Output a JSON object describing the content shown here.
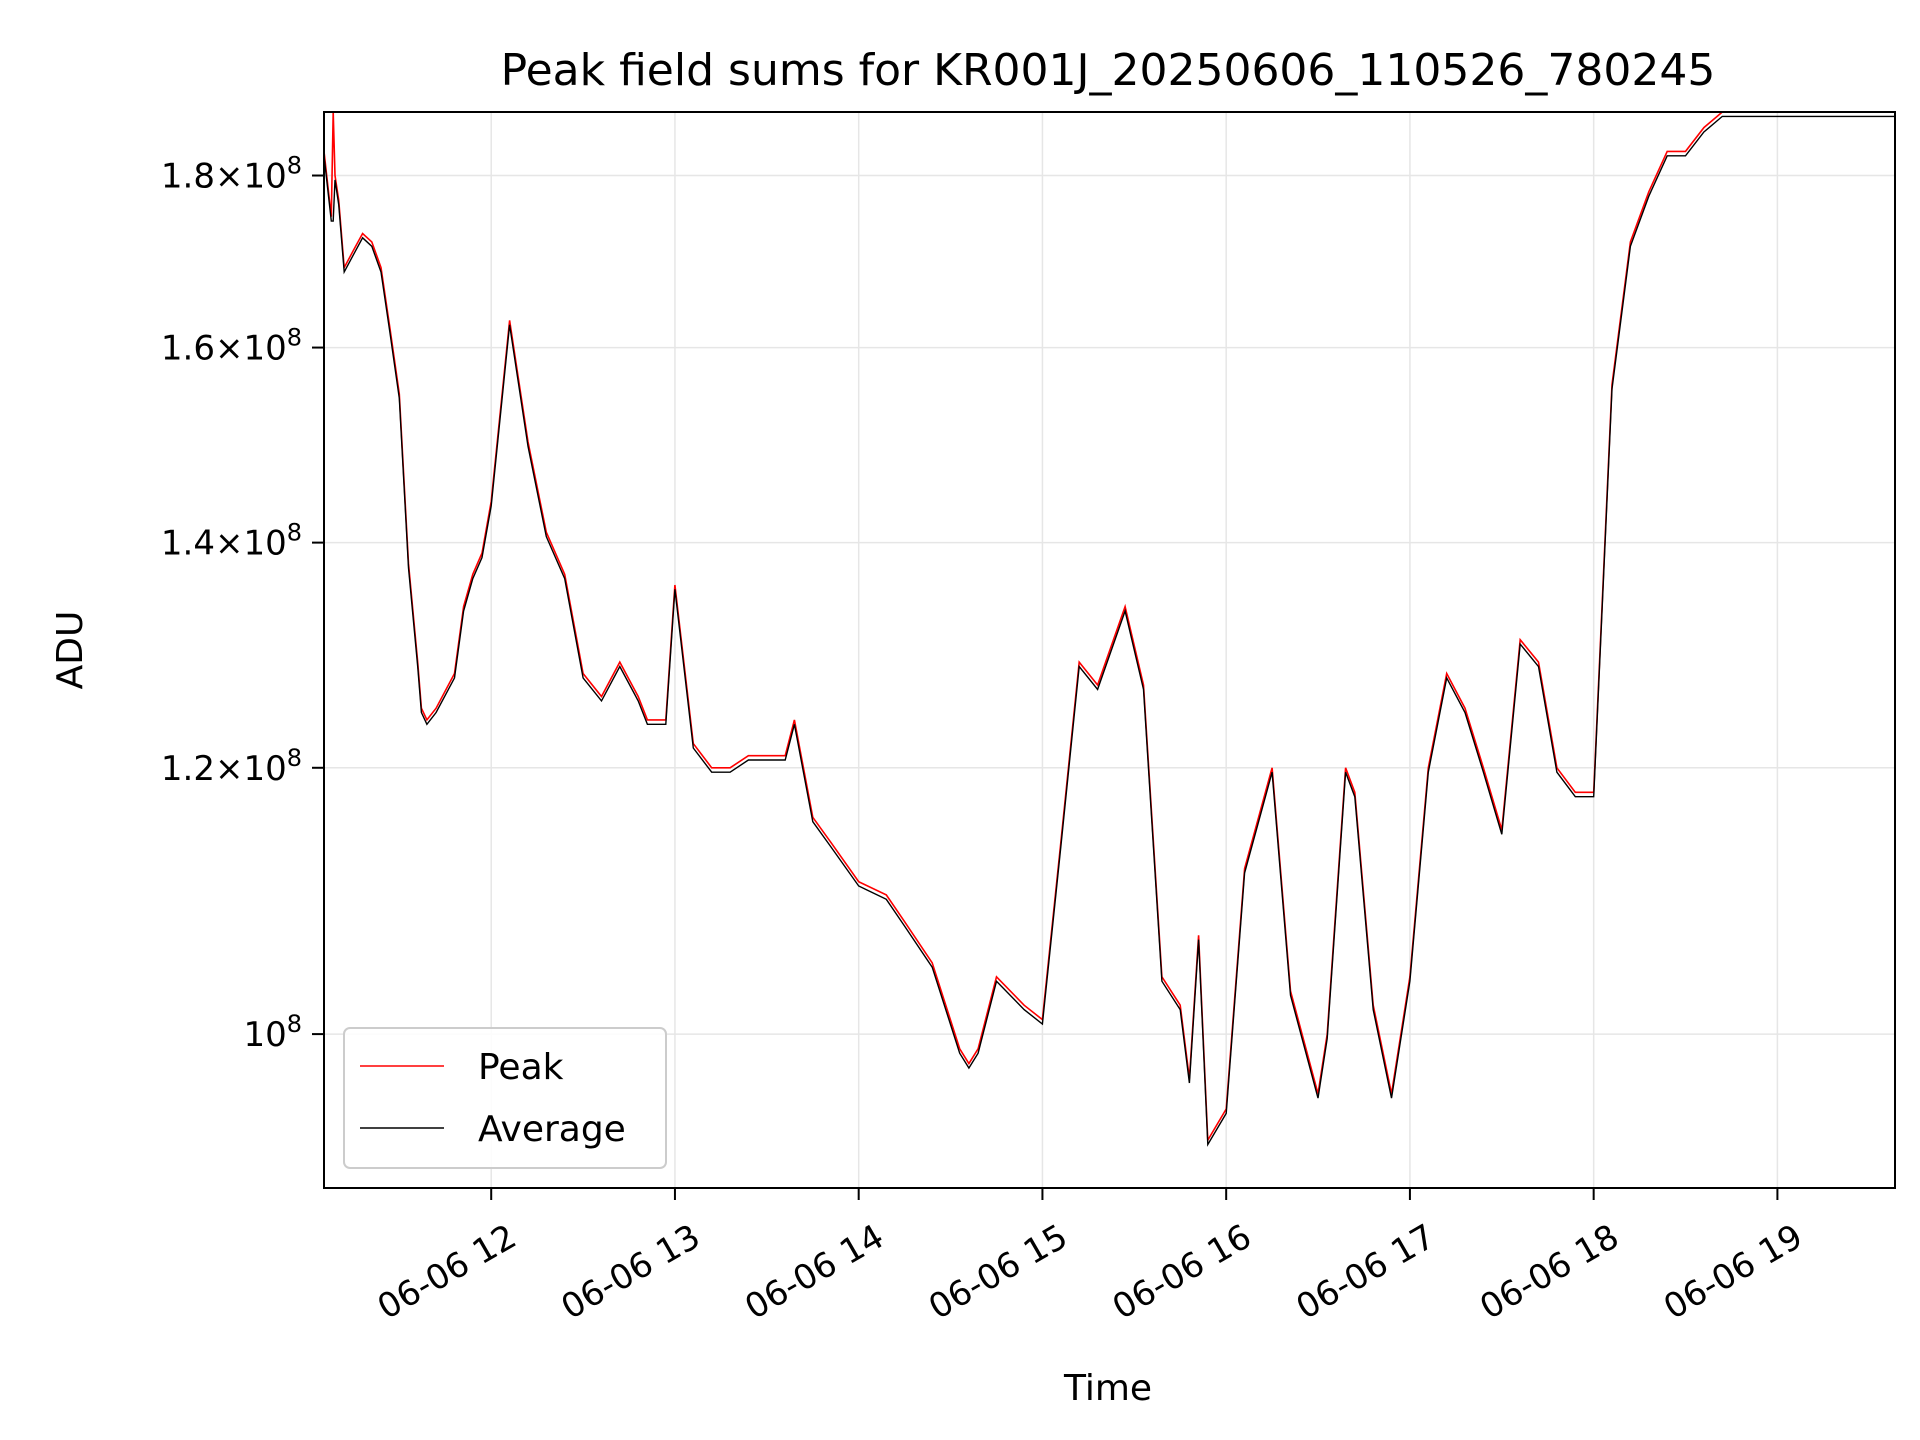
{
  "chart_data": {
    "type": "line",
    "title": "Peak field sums for KR001J_20250606_110526_780245",
    "xlabel": "Time",
    "ylabel": "ADU",
    "x_ticks": [
      "06-06 12",
      "06-06 13",
      "06-06 14",
      "06-06 15",
      "06-06 16",
      "06-06 17",
      "06-06 18",
      "06-06 19"
    ],
    "x_tick_hours": [
      12,
      13,
      14,
      15,
      16,
      17,
      18,
      19
    ],
    "xlim_hours": [
      11.09,
      19.64
    ],
    "y_scale": "log",
    "ylim": [
      90000000,
      188000000
    ],
    "y_ticks": [
      {
        "value": 100000000,
        "mant": "",
        "exp": "8"
      },
      {
        "value": 120000000,
        "mant": "1.2",
        "exp": "8"
      },
      {
        "value": 140000000,
        "mant": "1.4",
        "exp": "8"
      },
      {
        "value": 160000000,
        "mant": "1.6",
        "exp": "8"
      },
      {
        "value": 180000000,
        "mant": "1.8",
        "exp": "8"
      }
    ],
    "grid": true,
    "legend_position": "lower-left",
    "series": [
      {
        "name": "Peak",
        "color": "#ff0000",
        "hours": [
          11.09,
          11.13,
          11.14,
          11.15,
          11.17,
          11.2,
          11.25,
          11.3,
          11.35,
          11.4,
          11.45,
          11.5,
          11.55,
          11.6,
          11.62,
          11.65,
          11.7,
          11.8,
          11.85,
          11.9,
          11.95,
          12.0,
          12.1,
          12.2,
          12.3,
          12.4,
          12.5,
          12.6,
          12.7,
          12.8,
          12.85,
          12.95,
          13.0,
          13.1,
          13.2,
          13.3,
          13.4,
          13.5,
          13.6,
          13.65,
          13.75,
          13.85,
          14.0,
          14.15,
          14.25,
          14.4,
          14.55,
          14.6,
          14.65,
          14.75,
          14.9,
          15.0,
          15.1,
          15.2,
          15.3,
          15.45,
          15.55,
          15.65,
          15.75,
          15.8,
          15.85,
          15.9,
          16.0,
          16.1,
          16.25,
          16.35,
          16.5,
          16.55,
          16.65,
          16.7,
          16.8,
          16.9,
          17.0,
          17.1,
          17.2,
          17.3,
          17.4,
          17.5,
          17.6,
          17.7,
          17.8,
          17.9,
          18.0,
          18.1,
          18.2,
          18.3,
          18.4,
          18.5,
          18.6,
          18.7,
          18.8,
          18.9,
          19.0,
          19.1,
          19.15,
          19.25,
          19.35,
          19.45,
          19.55,
          19.6,
          19.64
        ],
        "values": [
          183,
          175,
          188,
          180,
          177,
          169,
          171,
          173,
          172,
          169,
          162,
          155,
          138,
          129,
          125,
          124,
          125,
          128,
          134,
          137,
          139,
          144,
          163,
          150,
          141,
          137,
          128,
          126,
          129,
          126,
          124,
          124,
          136,
          122,
          120,
          120,
          121,
          121,
          121,
          124,
          116,
          114,
          111,
          110,
          108,
          105,
          99,
          98,
          99,
          104,
          102,
          101,
          114,
          129,
          127,
          134,
          127,
          104,
          102,
          97,
          107,
          93,
          95,
          112,
          120,
          103,
          96,
          100,
          120,
          118,
          102,
          96,
          104,
          120,
          128,
          125,
          120,
          115,
          131,
          129,
          120,
          118,
          118,
          156,
          172,
          178,
          183,
          183,
          186,
          188,
          188,
          188,
          188,
          188,
          188,
          188,
          188,
          188,
          188,
          188,
          188
        ],
        "note": ""
      },
      {
        "name": "Average",
        "color": "#000000",
        "hours": [],
        "values": []
      }
    ]
  }
}
